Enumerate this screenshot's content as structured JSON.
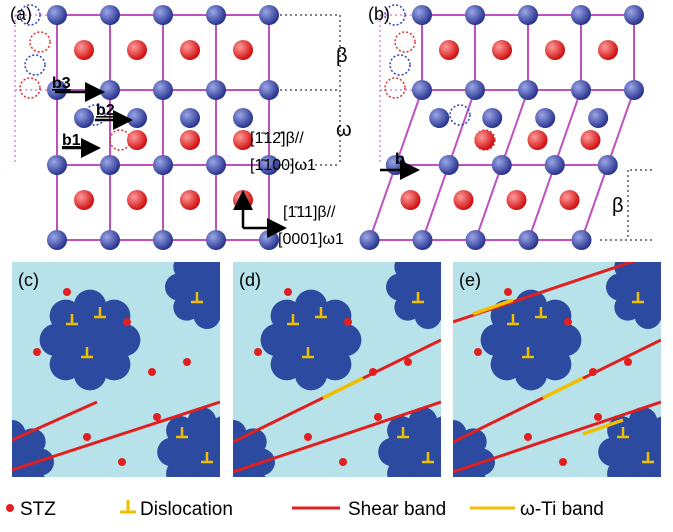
{
  "panels": {
    "a": {
      "label": "(a)",
      "burgers": [
        "b1",
        "b2",
        "b3"
      ],
      "phases": [
        "β",
        "ω"
      ],
      "directions": [
        "[1̄12̄]β//",
        "[1̄100]ω1",
        "[1̄11]β//",
        "[0001]ω1"
      ]
    },
    "b": {
      "label": "(b)",
      "burgers": [
        "b"
      ],
      "phases": [
        "β"
      ]
    },
    "c": {
      "label": "(c)"
    },
    "d": {
      "label": "(d)"
    },
    "e": {
      "label": "(e)"
    }
  },
  "legend": [
    "STZ",
    "Dislocation",
    "Shear band",
    "ω-Ti band"
  ]
}
